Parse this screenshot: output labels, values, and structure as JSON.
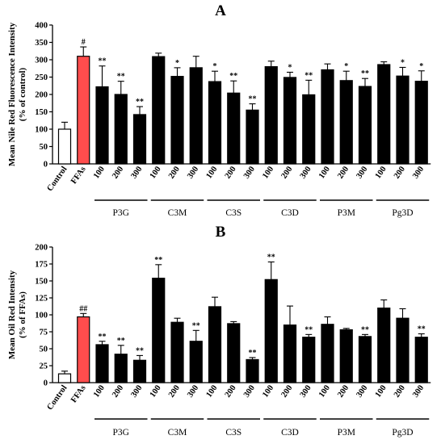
{
  "chart_data": [
    {
      "panel": "A",
      "type": "bar",
      "ylabel": [
        "Mean Nile Red Fluorescence Intensity",
        "(% of control)"
      ],
      "ylim": [
        0,
        400
      ],
      "yticks": [
        0,
        50,
        100,
        150,
        200,
        250,
        300,
        350,
        400
      ],
      "categories": [
        "Control",
        "FFAs",
        "100",
        "200",
        "300",
        "100",
        "200",
        "300",
        "100",
        "200",
        "300",
        "100",
        "200",
        "300",
        "100",
        "200",
        "300",
        "100",
        "200",
        "300"
      ],
      "values": [
        100,
        310,
        222,
        200,
        142,
        309,
        252,
        277,
        237,
        204,
        155,
        280,
        249,
        199,
        271,
        240,
        223,
        286,
        253,
        238
      ],
      "errors": [
        20,
        27,
        60,
        38,
        23,
        10,
        25,
        33,
        30,
        35,
        18,
        16,
        15,
        42,
        17,
        27,
        23,
        8,
        25,
        30
      ],
      "sig": [
        "",
        "#",
        "**",
        "**",
        "**",
        "",
        "*",
        "",
        "*",
        "**",
        "**",
        "",
        "*",
        "**",
        "",
        "*",
        "**",
        "",
        "*",
        "*"
      ],
      "groups": [
        "P3G",
        "C3M",
        "C3S",
        "C3D",
        "P3M",
        "Pg3D"
      ],
      "bar_colors": {
        "control": "#ffffff",
        "ffas": "#ff4d4d",
        "treatment": "#000000"
      }
    },
    {
      "panel": "B",
      "type": "bar",
      "ylabel": [
        "Mean Oil Red Intensity",
        "(% of FFAs)"
      ],
      "ylim": [
        0,
        200
      ],
      "yticks": [
        0,
        25,
        50,
        75,
        100,
        125,
        150,
        175,
        200
      ],
      "categories": [
        "Control",
        "FFAs",
        "100",
        "200",
        "300",
        "100",
        "200",
        "300",
        "100",
        "200",
        "300",
        "100",
        "200",
        "300",
        "100",
        "200",
        "300",
        "100",
        "200",
        "300"
      ],
      "values": [
        13,
        97,
        56,
        42,
        33,
        154,
        89,
        61,
        112,
        87,
        34,
        152,
        85,
        67,
        86,
        78,
        68,
        110,
        95,
        67
      ],
      "errors": [
        4,
        5,
        5,
        13,
        7,
        20,
        6,
        16,
        14,
        3,
        3,
        26,
        28,
        4,
        11,
        2,
        3,
        12,
        14,
        5
      ],
      "sig": [
        "",
        "##",
        "**",
        "**",
        "**",
        "**",
        "",
        "**",
        "",
        "",
        "**",
        "**",
        "",
        "**",
        "",
        "",
        "**",
        "",
        "",
        "**"
      ],
      "groups": [
        "P3G",
        "C3M",
        "C3S",
        "C3D",
        "P3M",
        "Pg3D"
      ],
      "bar_colors": {
        "control": "#ffffff",
        "ffas": "#ff4d4d",
        "treatment": "#000000"
      }
    }
  ]
}
